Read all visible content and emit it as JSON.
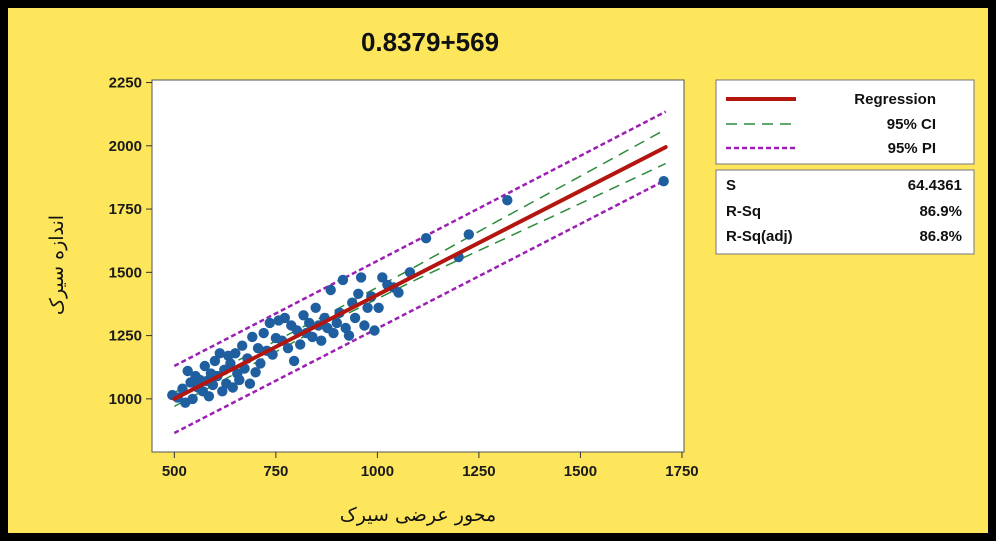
{
  "chart_data": {
    "type": "scatter",
    "title": "0.8379+569",
    "xlabel": "محور عرضی سیرک",
    "ylabel": "اندازه سیرک",
    "xlim": [
      445,
      1755
    ],
    "ylim": [
      790,
      2260
    ],
    "x_ticks": [
      500,
      750,
      1000,
      1250,
      1500,
      1750
    ],
    "y_ticks": [
      1000,
      1250,
      1500,
      1750,
      2000,
      2250
    ],
    "grid": false,
    "legend_position": "right",
    "series": [
      {
        "name": "Regression",
        "kind": "line",
        "color": "#b3150f",
        "dash": "solid",
        "x": [
          500,
          1710
        ],
        "y": [
          1000,
          1995
        ]
      },
      {
        "name": "95% CI",
        "kind": "band",
        "color": "#2e8b3e",
        "dash": "long-dash",
        "x": [
          500,
          700,
          900,
          1100,
          1300,
          1500,
          1710
        ],
        "lower": [
          970,
          1143,
          1316,
          1475,
          1623,
          1772,
          1930
        ],
        "upper": [
          1025,
          1187,
          1354,
          1528,
          1706,
          1880,
          2065
        ]
      },
      {
        "name": "95% PI",
        "kind": "band",
        "color": "#9b1fb3",
        "dash": "short-dash",
        "x": [
          500,
          1710
        ],
        "lower": [
          865,
          1865
        ],
        "upper": [
          1130,
          2135
        ]
      },
      {
        "name": "",
        "kind": "points",
        "color": "#1f5fa0",
        "x": [
          495,
          508,
          520,
          527,
          533,
          540,
          545,
          552,
          558,
          563,
          570,
          575,
          580,
          585,
          590,
          595,
          600,
          606,
          612,
          618,
          623,
          628,
          633,
          638,
          644,
          650,
          655,
          660,
          667,
          673,
          680,
          686,
          692,
          700,
          706,
          712,
          720,
          728,
          735,
          742,
          750,
          757,
          765,
          772,
          780,
          788,
          795,
          802,
          810,
          818,
          825,
          832,
          840,
          848,
          855,
          862,
          870,
          877,
          885,
          892,
          900,
          907,
          915,
          922,
          930,
          938,
          945,
          953,
          960,
          968,
          976,
          985,
          993,
          1003,
          1012,
          1025,
          1040,
          1052,
          1080,
          1120,
          1200,
          1225,
          1320,
          1705
        ],
        "y": [
          1015,
          1005,
          1040,
          985,
          1110,
          1065,
          1000,
          1090,
          1045,
          1075,
          1030,
          1130,
          1070,
          1010,
          1100,
          1055,
          1150,
          1090,
          1180,
          1030,
          1115,
          1060,
          1170,
          1140,
          1045,
          1180,
          1100,
          1075,
          1210,
          1120,
          1160,
          1060,
          1245,
          1105,
          1200,
          1140,
          1260,
          1190,
          1300,
          1175,
          1240,
          1310,
          1230,
          1320,
          1200,
          1290,
          1150,
          1270,
          1215,
          1330,
          1260,
          1300,
          1245,
          1360,
          1290,
          1230,
          1320,
          1280,
          1430,
          1260,
          1300,
          1340,
          1470,
          1280,
          1250,
          1380,
          1320,
          1415,
          1480,
          1290,
          1360,
          1405,
          1270,
          1360,
          1480,
          1450,
          1440,
          1420,
          1500,
          1635,
          1560,
          1650,
          1785,
          1860
        ]
      }
    ],
    "stats": [
      {
        "label": "S",
        "value": "64.4361"
      },
      {
        "label": "R-Sq",
        "value": "86.9%"
      },
      {
        "label": "R-Sq(adj)",
        "value": "86.8%"
      }
    ]
  }
}
